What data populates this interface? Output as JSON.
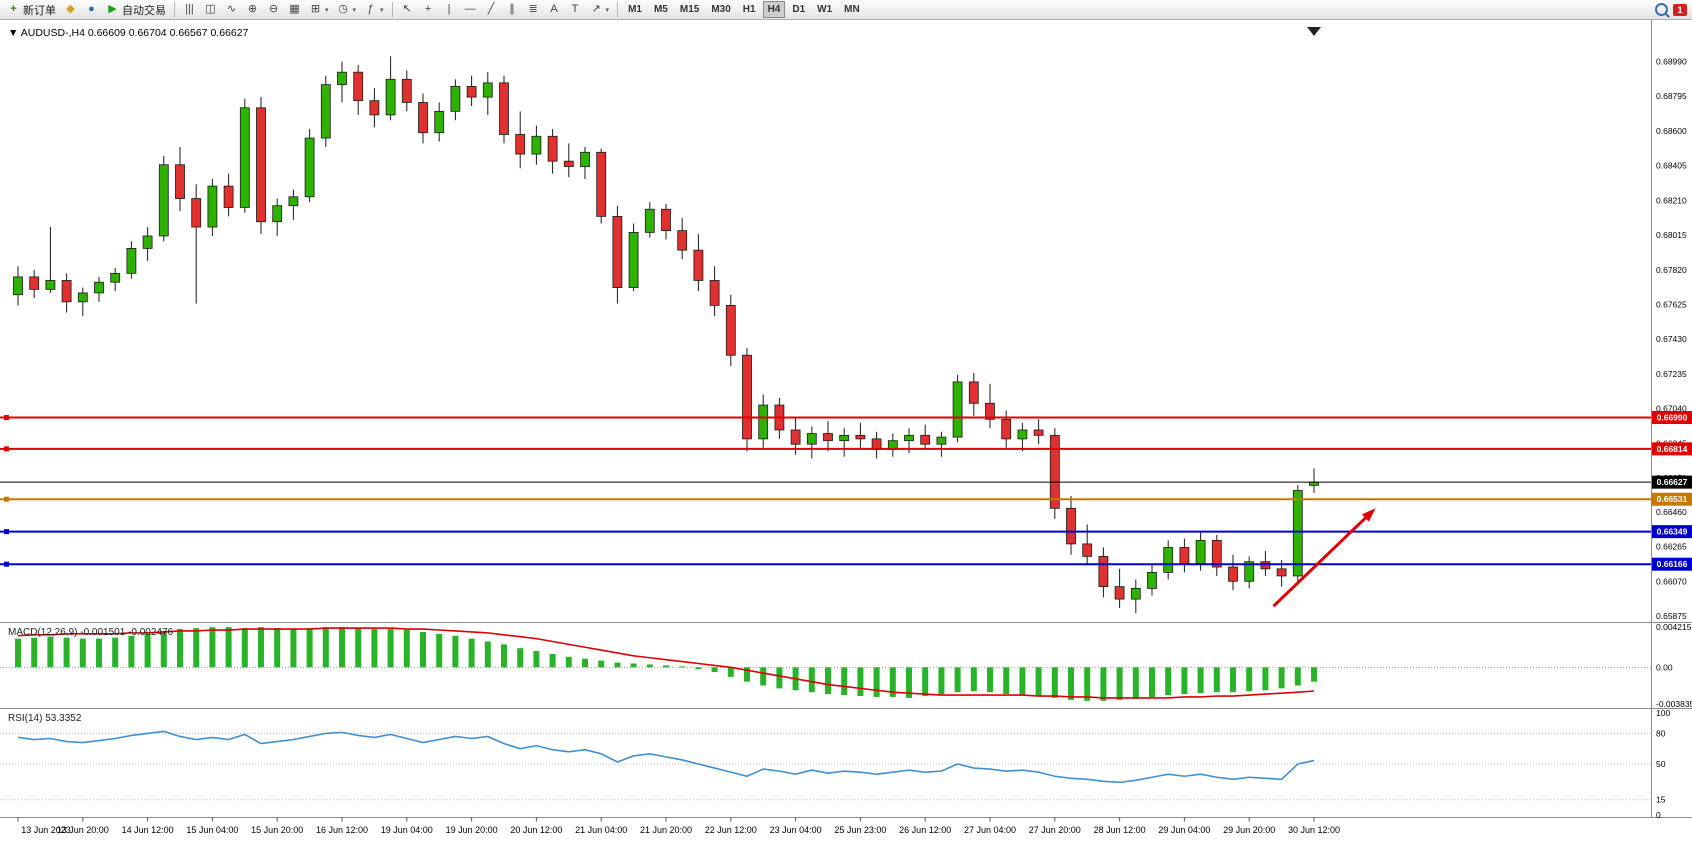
{
  "toolbar": {
    "groups": [
      {
        "name": "standard",
        "items": [
          {
            "name": "new-order-button",
            "icon": "new-order",
            "glyph": "+",
            "label": "新订单"
          },
          {
            "name": "metaeditor-button",
            "icon": "metaeditor",
            "glyph": "◆"
          },
          {
            "name": "profiles-button",
            "icon": "profiles",
            "glyph": "●"
          },
          {
            "name": "autotrading-button",
            "icon": "autotrading",
            "glyph": "▶",
            "label": "自动交易"
          }
        ]
      },
      {
        "name": "charts",
        "items": [
          {
            "name": "bar-chart-button",
            "glyph": "|||"
          },
          {
            "name": "candlestick-button",
            "glyph": "◫"
          },
          {
            "name": "line-chart-button",
            "glyph": "∿"
          },
          {
            "name": "zoom-in-button",
            "glyph": "⊕"
          },
          {
            "name": "zoom-out-button",
            "glyph": "⊖"
          },
          {
            "name": "tile-windows-button",
            "glyph": "▦"
          },
          {
            "name": "new-chart-button",
            "glyph": "⊞",
            "dropdown": true
          },
          {
            "name": "clock-button",
            "glyph": "◷",
            "dropdown": true
          },
          {
            "name": "indicators-button",
            "glyph": "ƒ",
            "dropdown": true
          }
        ]
      },
      {
        "name": "line-studies",
        "items": [
          {
            "name": "cursor-button",
            "glyph": "↖"
          },
          {
            "name": "crosshair-button",
            "glyph": "+"
          },
          {
            "name": "vertical-line-button",
            "glyph": "|"
          },
          {
            "name": "horizontal-line-button",
            "glyph": "—"
          },
          {
            "name": "trendline-button",
            "glyph": "╱"
          },
          {
            "name": "channel-button",
            "glyph": "∥"
          },
          {
            "name": "fibonacci-button",
            "glyph": "≣"
          },
          {
            "name": "text-button",
            "glyph": "A"
          },
          {
            "name": "label-button",
            "glyph": "T"
          },
          {
            "name": "arrows-button",
            "glyph": "↗",
            "dropdown": true
          }
        ]
      },
      {
        "name": "periods",
        "items": [
          {
            "name": "period-m1-button",
            "label": "M1"
          },
          {
            "name": "period-m5-button",
            "label": "M5"
          },
          {
            "name": "period-m15-button",
            "label": "M15"
          },
          {
            "name": "period-m30-button",
            "label": "M30"
          },
          {
            "name": "period-h1-button",
            "label": "H1"
          },
          {
            "name": "period-h4-button",
            "label": "H4",
            "active": true
          },
          {
            "name": "period-d1-button",
            "label": "D1"
          },
          {
            "name": "period-w1-button",
            "label": "W1"
          },
          {
            "name": "period-mn-button",
            "label": "MN"
          }
        ]
      }
    ],
    "right": {
      "badge": "1"
    }
  },
  "chart": {
    "symbol": "AUDUSD-",
    "period": "H4",
    "ohlc_line": {
      "open": "0.66609",
      "high": "0.66704",
      "low": "0.66567",
      "close": "0.66627"
    },
    "price_ticks": [
      0.6899,
      0.68795,
      0.686,
      0.68405,
      0.6821,
      0.68015,
      0.6782,
      0.67625,
      0.6743,
      0.67235,
      0.6704,
      0.66845,
      0.6665,
      0.6646,
      0.66265,
      0.6607,
      0.65875
    ],
    "time_labels": [
      {
        "i": 0,
        "t": "13 Jun 2023"
      },
      {
        "i": 4,
        "t": "13 Jun 20:00"
      },
      {
        "i": 8,
        "t": "14 Jun 12:00"
      },
      {
        "i": 12,
        "t": "15 Jun 04:00"
      },
      {
        "i": 16,
        "t": "15 Jun 20:00"
      },
      {
        "i": 20,
        "t": "16 Jun 12:00"
      },
      {
        "i": 24,
        "t": "19 Jun 04:00"
      },
      {
        "i": 28,
        "t": "19 Jun 20:00"
      },
      {
        "i": 32,
        "t": "20 Jun 12:00"
      },
      {
        "i": 36,
        "t": "21 Jun 04:00"
      },
      {
        "i": 40,
        "t": "21 Jun 20:00"
      },
      {
        "i": 44,
        "t": "22 Jun 12:00"
      },
      {
        "i": 48,
        "t": "23 Jun 04:00"
      },
      {
        "i": 52,
        "t": "25 Jun 23:00"
      },
      {
        "i": 56,
        "t": "26 Jun 12:00"
      },
      {
        "i": 60,
        "t": "27 Jun 04:00"
      },
      {
        "i": 64,
        "t": "27 Jun 20:00"
      },
      {
        "i": 68,
        "t": "28 Jun 12:00"
      },
      {
        "i": 72,
        "t": "29 Jun 04:00"
      },
      {
        "i": 76,
        "t": "29 Jun 20:00"
      },
      {
        "i": 80,
        "t": "30 Jun 12:00"
      }
    ],
    "levels": [
      {
        "price": 0.6699,
        "label": "0.66990",
        "color": "#e00000",
        "width": 2,
        "handle": true
      },
      {
        "price": 0.66814,
        "label": "0.66814",
        "color": "#e00000",
        "width": 2,
        "handle": true
      },
      {
        "price": 0.66627,
        "label": "0.66627",
        "color": "#000000",
        "width": 1,
        "handle": false
      },
      {
        "price": 0.66531,
        "label": "0.66531",
        "color": "#c87800",
        "width": 2,
        "handle": true
      },
      {
        "price": 0.66349,
        "label": "0.66349",
        "color": "#0000cd",
        "width": 2,
        "handle": true
      },
      {
        "price": 0.66166,
        "label": "0.66166",
        "color": "#0000cd",
        "width": 2,
        "handle": true
      }
    ],
    "arrow": {
      "i1": 77.5,
      "p1": 0.6593,
      "i2": 83.8,
      "p2": 0.6648,
      "color": "#e00000"
    },
    "candles": [
      [
        0.6768,
        0.6784,
        0.6762,
        0.6778
      ],
      [
        0.6778,
        0.6782,
        0.6766,
        0.6771
      ],
      [
        0.6771,
        0.6806,
        0.6769,
        0.6776
      ],
      [
        0.6776,
        0.678,
        0.6758,
        0.6764
      ],
      [
        0.6764,
        0.6772,
        0.6756,
        0.6769
      ],
      [
        0.6769,
        0.6778,
        0.6764,
        0.6775
      ],
      [
        0.6775,
        0.6783,
        0.677,
        0.678
      ],
      [
        0.678,
        0.6798,
        0.6777,
        0.6794
      ],
      [
        0.6794,
        0.6806,
        0.6787,
        0.6801
      ],
      [
        0.6801,
        0.6846,
        0.6798,
        0.6841
      ],
      [
        0.6841,
        0.6851,
        0.6815,
        0.6822
      ],
      [
        0.6822,
        0.683,
        0.6763,
        0.6806
      ],
      [
        0.6806,
        0.6833,
        0.6801,
        0.6829
      ],
      [
        0.6829,
        0.6836,
        0.6812,
        0.6817
      ],
      [
        0.6817,
        0.6878,
        0.6814,
        0.6873
      ],
      [
        0.6873,
        0.6879,
        0.6802,
        0.6809
      ],
      [
        0.6809,
        0.6822,
        0.6801,
        0.6818
      ],
      [
        0.6818,
        0.6827,
        0.681,
        0.6823
      ],
      [
        0.6823,
        0.6861,
        0.682,
        0.6856
      ],
      [
        0.6856,
        0.6891,
        0.6851,
        0.6886
      ],
      [
        0.6886,
        0.6899,
        0.6876,
        0.6893
      ],
      [
        0.6893,
        0.6897,
        0.6869,
        0.6877
      ],
      [
        0.6877,
        0.6884,
        0.6862,
        0.6869
      ],
      [
        0.6869,
        0.6902,
        0.6866,
        0.6889
      ],
      [
        0.6889,
        0.6894,
        0.6871,
        0.6876
      ],
      [
        0.6876,
        0.6881,
        0.6853,
        0.6859
      ],
      [
        0.6859,
        0.6876,
        0.6854,
        0.6871
      ],
      [
        0.6871,
        0.6889,
        0.6866,
        0.6885
      ],
      [
        0.6885,
        0.6891,
        0.6874,
        0.6879
      ],
      [
        0.6879,
        0.6893,
        0.6869,
        0.6887
      ],
      [
        0.6887,
        0.6891,
        0.6853,
        0.6858
      ],
      [
        0.6858,
        0.6871,
        0.6839,
        0.6847
      ],
      [
        0.6847,
        0.6863,
        0.6841,
        0.6857
      ],
      [
        0.6857,
        0.6861,
        0.6836,
        0.6843
      ],
      [
        0.6843,
        0.6853,
        0.6834,
        0.684
      ],
      [
        0.684,
        0.6851,
        0.6833,
        0.6848
      ],
      [
        0.6848,
        0.685,
        0.6808,
        0.6812
      ],
      [
        0.6812,
        0.6818,
        0.6763,
        0.6772
      ],
      [
        0.6772,
        0.6808,
        0.677,
        0.6803
      ],
      [
        0.6803,
        0.682,
        0.68,
        0.6816
      ],
      [
        0.6816,
        0.6819,
        0.6799,
        0.6804
      ],
      [
        0.6804,
        0.6811,
        0.6788,
        0.6793
      ],
      [
        0.6793,
        0.6802,
        0.677,
        0.6776
      ],
      [
        0.6776,
        0.6784,
        0.6756,
        0.6762
      ],
      [
        0.6762,
        0.6768,
        0.6728,
        0.6734
      ],
      [
        0.6734,
        0.6738,
        0.668,
        0.6687
      ],
      [
        0.6687,
        0.6712,
        0.6682,
        0.6706
      ],
      [
        0.6706,
        0.671,
        0.6687,
        0.6692
      ],
      [
        0.6692,
        0.6699,
        0.6678,
        0.6684
      ],
      [
        0.6684,
        0.6694,
        0.6676,
        0.669
      ],
      [
        0.669,
        0.6697,
        0.668,
        0.6686
      ],
      [
        0.6686,
        0.6693,
        0.6677,
        0.6689
      ],
      [
        0.6689,
        0.6696,
        0.6682,
        0.6687
      ],
      [
        0.6687,
        0.6691,
        0.6676,
        0.6681
      ],
      [
        0.6681,
        0.669,
        0.6677,
        0.6686
      ],
      [
        0.6686,
        0.6693,
        0.6679,
        0.6689
      ],
      [
        0.6689,
        0.6695,
        0.6681,
        0.6684
      ],
      [
        0.6684,
        0.6691,
        0.6677,
        0.6688
      ],
      [
        0.6688,
        0.6723,
        0.6685,
        0.6719
      ],
      [
        0.6719,
        0.6724,
        0.67,
        0.6707
      ],
      [
        0.6707,
        0.6718,
        0.6693,
        0.6698
      ],
      [
        0.6698,
        0.6703,
        0.6682,
        0.6687
      ],
      [
        0.6687,
        0.6696,
        0.668,
        0.6692
      ],
      [
        0.6692,
        0.6698,
        0.6684,
        0.6689
      ],
      [
        0.6689,
        0.6693,
        0.6642,
        0.6648
      ],
      [
        0.6648,
        0.6655,
        0.6622,
        0.6628
      ],
      [
        0.6628,
        0.6639,
        0.6616,
        0.6621
      ],
      [
        0.6621,
        0.6626,
        0.6598,
        0.6604
      ],
      [
        0.6604,
        0.6614,
        0.6592,
        0.6597
      ],
      [
        0.6597,
        0.6608,
        0.6589,
        0.6603
      ],
      [
        0.6603,
        0.6617,
        0.6599,
        0.6612
      ],
      [
        0.6612,
        0.663,
        0.6608,
        0.6626
      ],
      [
        0.6626,
        0.6631,
        0.6612,
        0.6617
      ],
      [
        0.6617,
        0.6635,
        0.6613,
        0.663
      ],
      [
        0.663,
        0.6633,
        0.661,
        0.6615
      ],
      [
        0.6615,
        0.6622,
        0.6602,
        0.6607
      ],
      [
        0.6607,
        0.6621,
        0.6603,
        0.6618
      ],
      [
        0.6618,
        0.6624,
        0.661,
        0.6614
      ],
      [
        0.6614,
        0.6619,
        0.6604,
        0.661
      ],
      [
        0.661,
        0.6661,
        0.6607,
        0.6658
      ],
      [
        0.66609,
        0.66704,
        0.66567,
        0.66627
      ]
    ],
    "colors": {
      "bull": "#2db200",
      "bear": "#e03030",
      "outline": "#1a1a1a",
      "background": "#ffffff"
    }
  },
  "macd": {
    "label": "MACD(12,26,9)",
    "value": "-0.001501",
    "signal_value": "-0.002476",
    "max": 0.004215,
    "min": -0.003835,
    "scale": [
      {
        "v": 0.004215,
        "t": "0.004215"
      },
      {
        "v": 0,
        "t": "0.00"
      },
      {
        "v": -0.003835,
        "t": "-0.003835"
      }
    ],
    "hist_color": "#29b329",
    "signal_color": "#e00000",
    "histogram": [
      0.003,
      0.0031,
      0.0032,
      0.0031,
      0.003,
      0.003,
      0.0031,
      0.0033,
      0.0035,
      0.0038,
      0.004,
      0.0041,
      0.0042,
      0.0042,
      0.0041,
      0.0042,
      0.0041,
      0.004,
      0.0041,
      0.0042,
      0.0042,
      0.0041,
      0.004,
      0.004,
      0.0039,
      0.0037,
      0.0035,
      0.0033,
      0.003,
      0.0027,
      0.0024,
      0.002,
      0.0017,
      0.0014,
      0.0011,
      0.0009,
      0.0007,
      0.0005,
      0.0004,
      0.0003,
      0.0002,
      0.0001,
      -0.0002,
      -0.0005,
      -0.001,
      -0.0015,
      -0.0019,
      -0.0022,
      -0.0024,
      -0.0026,
      -0.0028,
      -0.0029,
      -0.003,
      -0.0031,
      -0.0031,
      -0.0032,
      -0.003,
      -0.0028,
      -0.0026,
      -0.0025,
      -0.0026,
      -0.0028,
      -0.0029,
      -0.003,
      -0.0032,
      -0.0034,
      -0.0035,
      -0.0035,
      -0.0034,
      -0.0033,
      -0.0031,
      -0.0029,
      -0.0028,
      -0.0027,
      -0.0026,
      -0.0026,
      -0.0025,
      -0.0024,
      -0.0022,
      -0.0019,
      -0.001501
    ],
    "signal": [
      0.0033,
      0.0034,
      0.0034,
      0.0035,
      0.0035,
      0.0035,
      0.0035,
      0.0036,
      0.0036,
      0.0037,
      0.0038,
      0.0038,
      0.0039,
      0.0039,
      0.004,
      0.004,
      0.004,
      0.004,
      0.004,
      0.0041,
      0.0041,
      0.0041,
      0.0041,
      0.0041,
      0.004,
      0.004,
      0.0039,
      0.0038,
      0.0037,
      0.0036,
      0.0034,
      0.0032,
      0.003,
      0.0027,
      0.0024,
      0.0021,
      0.0018,
      0.0015,
      0.0012,
      0.001,
      0.0008,
      0.0006,
      0.0004,
      0.0002,
      0.0,
      -0.0003,
      -0.0006,
      -0.0009,
      -0.0012,
      -0.0015,
      -0.0018,
      -0.002,
      -0.0022,
      -0.0024,
      -0.0026,
      -0.0027,
      -0.0028,
      -0.0029,
      -0.0029,
      -0.0029,
      -0.0029,
      -0.0029,
      -0.0029,
      -0.003,
      -0.003,
      -0.0031,
      -0.0031,
      -0.0032,
      -0.0032,
      -0.0032,
      -0.0032,
      -0.0032,
      -0.0031,
      -0.0031,
      -0.003,
      -0.003,
      -0.0029,
      -0.0028,
      -0.0027,
      -0.0026,
      -0.002476
    ]
  },
  "rsi": {
    "label": "RSI(14)",
    "value": "53.3352",
    "line_color": "#3f8fd2",
    "scale": [
      {
        "v": 100,
        "t": "100"
      },
      {
        "v": 80,
        "t": "80"
      },
      {
        "v": 50,
        "t": "50"
      },
      {
        "v": 15,
        "t": "15"
      },
      {
        "v": 0,
        "t": "0"
      }
    ],
    "level_lines": [
      80,
      50,
      15
    ],
    "values": [
      76,
      74,
      75,
      72,
      71,
      73,
      75,
      78,
      80,
      82,
      77,
      74,
      76,
      74,
      79,
      70,
      72,
      74,
      77,
      80,
      81,
      78,
      76,
      79,
      75,
      71,
      74,
      77,
      75,
      77,
      70,
      65,
      68,
      64,
      62,
      64,
      60,
      52,
      58,
      60,
      57,
      54,
      50,
      46,
      42,
      38,
      45,
      43,
      40,
      44,
      41,
      43,
      42,
      40,
      42,
      44,
      42,
      43,
      50,
      46,
      45,
      43,
      44,
      42,
      38,
      36,
      35,
      33,
      32,
      34,
      37,
      40,
      38,
      40,
      37,
      35,
      37,
      36,
      35,
      50,
      53.34
    ]
  }
}
